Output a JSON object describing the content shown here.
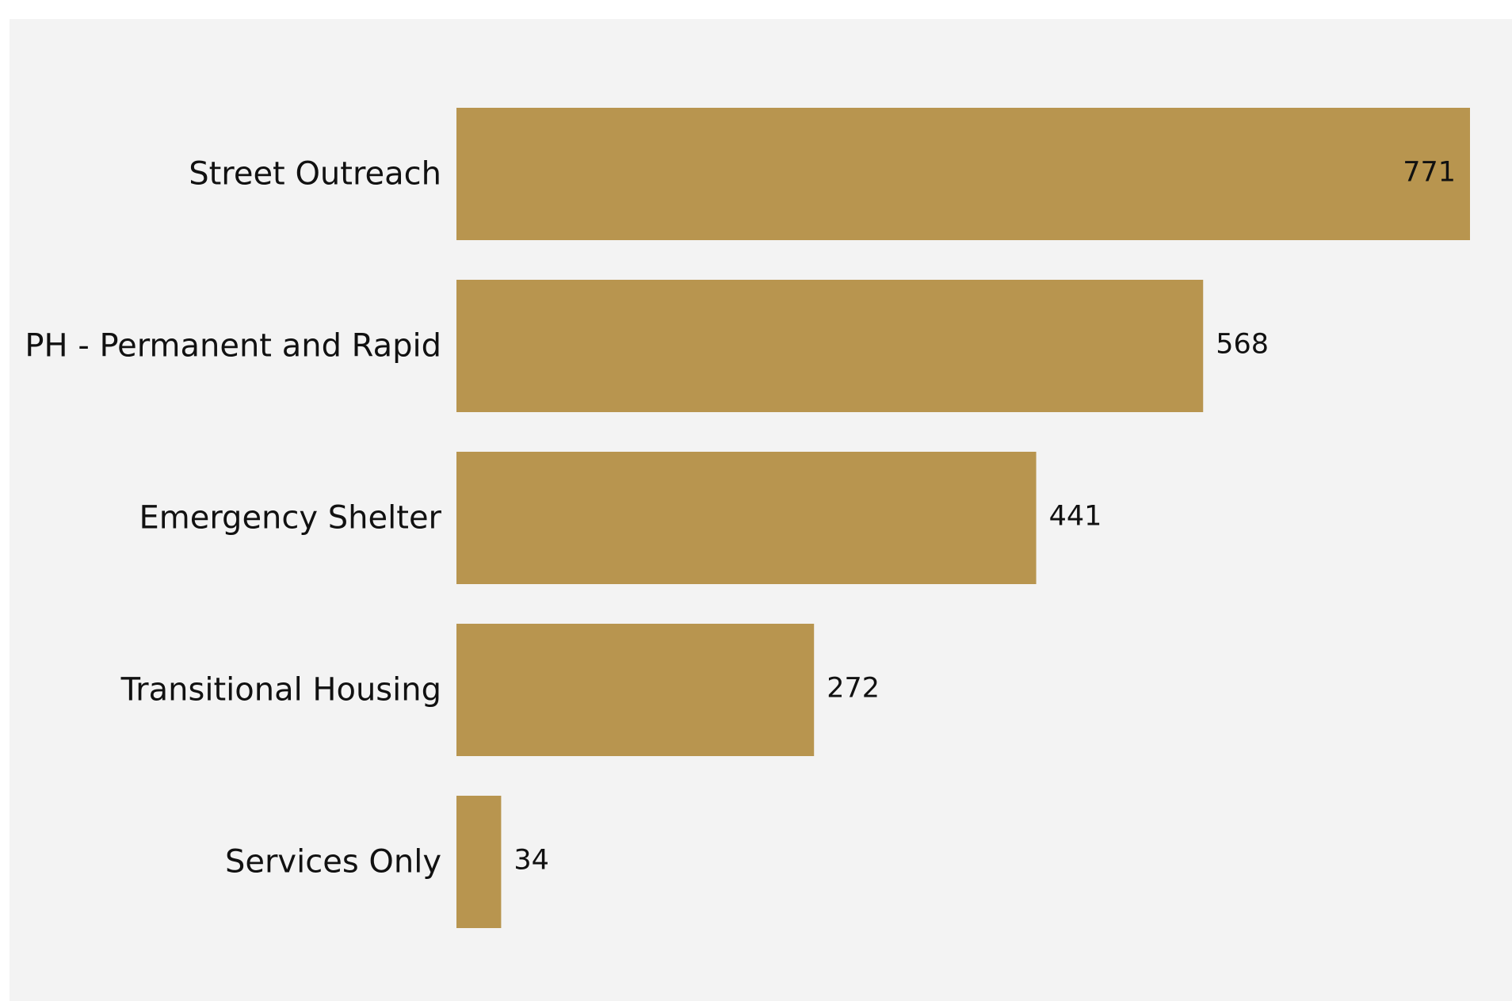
{
  "chart_data": {
    "type": "bar",
    "orientation": "horizontal",
    "categories": [
      "Street Outreach",
      "PH - Permanent and Rapid",
      "Emergency Shelter",
      "Transitional Housing",
      "Services Only"
    ],
    "values": [
      771,
      568,
      441,
      272,
      34
    ],
    "value_labels": [
      "771",
      "568",
      "441",
      "272",
      "34"
    ],
    "title": "",
    "xlabel": "",
    "ylabel": "",
    "xlim": [
      0,
      771
    ],
    "grid": false,
    "legend": "none",
    "colors": {
      "bar": "#b8954f",
      "background": "#f3f3f3",
      "text": "#111111"
    }
  }
}
